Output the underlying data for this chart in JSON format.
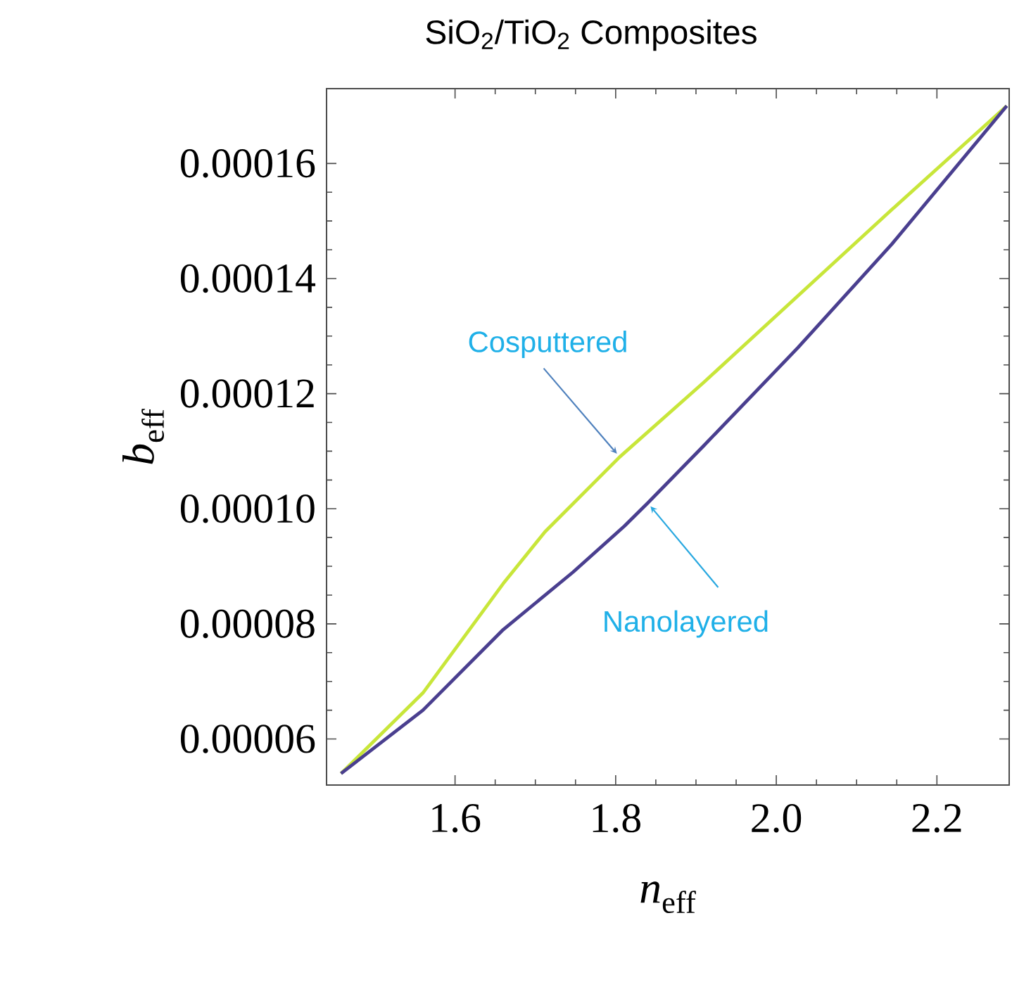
{
  "chart_data": {
    "type": "line",
    "title": "SiO$_{2}$/TiO$_{2}$ Composites",
    "xlabel": "*n*$_{eff}$",
    "ylabel": "*b*$_{eff}$",
    "xlim": [
      1.44,
      2.29
    ],
    "ylim": [
      5.2e-05,
      0.000173
    ],
    "xticks": [
      {
        "value": 1.6,
        "label": "1.6"
      },
      {
        "value": 1.8,
        "label": "1.8"
      },
      {
        "value": 2.0,
        "label": "2.0"
      },
      {
        "value": 2.2,
        "label": "2.2"
      }
    ],
    "yticks": [
      {
        "value": 6e-05,
        "label": "0.00006"
      },
      {
        "value": 8e-05,
        "label": "0.00008"
      },
      {
        "value": 0.0001,
        "label": "0.00010"
      },
      {
        "value": 0.00012,
        "label": "0.00012"
      },
      {
        "value": 0.00014,
        "label": "0.00014"
      },
      {
        "value": 0.00016,
        "label": "0.00016"
      }
    ],
    "series": [
      {
        "color": "#c8e63a",
        "x": [
          1.458,
          1.56,
          1.66,
          1.712,
          1.805,
          1.91,
          2.027,
          2.144,
          2.287
        ],
        "values": [
          5.4e-05,
          6.8e-05,
          8.7e-05,
          9.6e-05,
          0.000109,
          0.000122,
          0.000137,
          0.000152,
          0.00017
        ]
      },
      {
        "color": "#4a3f8f",
        "x": [
          1.458,
          1.56,
          1.66,
          1.747,
          1.811,
          1.84,
          1.91,
          2.027,
          2.144,
          2.287
        ],
        "values": [
          5.4e-05,
          6.5e-05,
          7.9e-05,
          8.9e-05,
          9.7e-05,
          0.000101,
          0.000111,
          0.000128,
          0.000146,
          0.00017
        ]
      }
    ],
    "annotations": [
      {
        "text": "Cosputtered",
        "x": 1.805,
        "y": 0.000109
      },
      {
        "text": "Nanolayered",
        "x": 1.84,
        "y": 0.000101
      }
    ],
    "grid": false,
    "marker": "none",
    "line_style": "solid"
  }
}
